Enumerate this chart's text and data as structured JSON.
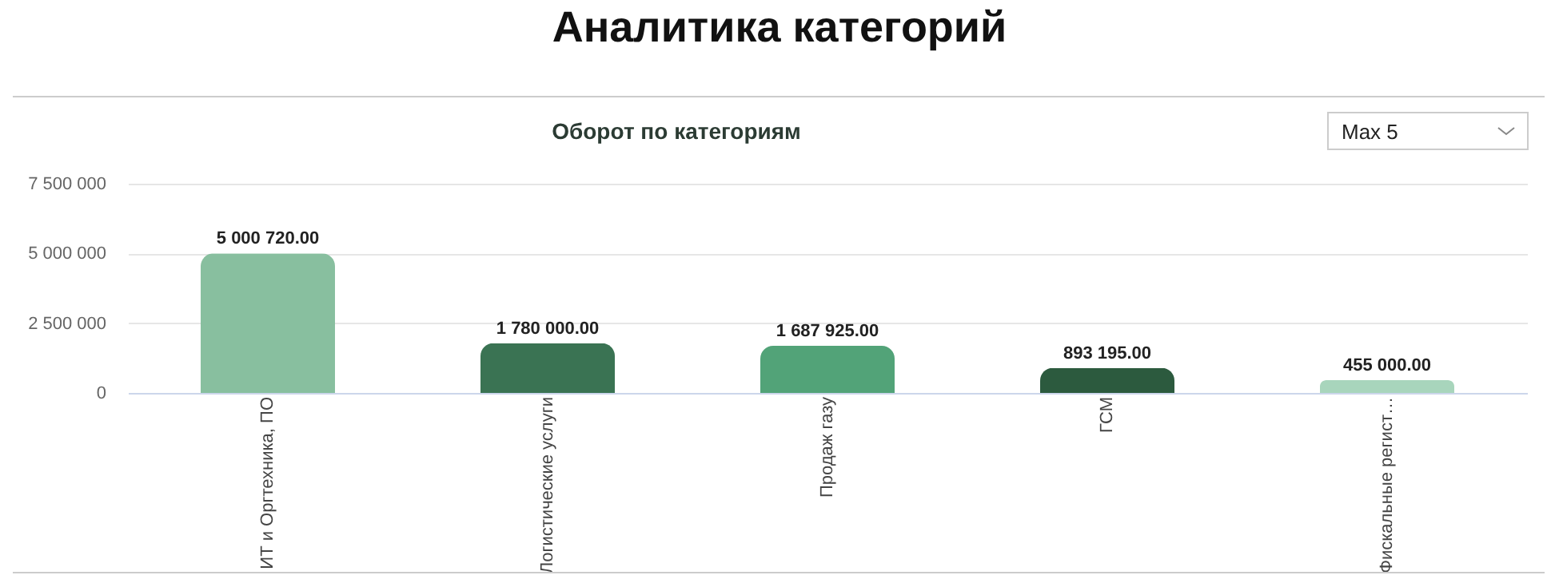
{
  "chart_data": {
    "type": "bar",
    "title": "Аналитика категорий",
    "subtitle": "Оборот по категориям",
    "categories": [
      "ИТ и Оргтехника, ПО",
      "Логистические услуги",
      "Продаж газу",
      "ГСМ",
      "Фискальные регист…"
    ],
    "values": [
      5000720,
      1780000,
      1687925,
      893195,
      455000
    ],
    "colors": [
      "#88bf9f",
      "#3a7353",
      "#52a378",
      "#2c5a3e",
      "#a8d5bc"
    ],
    "value_labels": [
      "5 000 720.00",
      "1 780 000.00",
      "1 687 925.00",
      "893 195.00",
      "455 000.00"
    ],
    "ylim": [
      0,
      7500000
    ],
    "yticks": [
      {
        "value": 0,
        "label": "0"
      },
      {
        "value": 2500000,
        "label": "2 500 000"
      },
      {
        "value": 5000000,
        "label": "5 000 000"
      },
      {
        "value": 7500000,
        "label": "7 500 000"
      }
    ],
    "grid": "y",
    "annotations": [
      "Max 5"
    ]
  }
}
